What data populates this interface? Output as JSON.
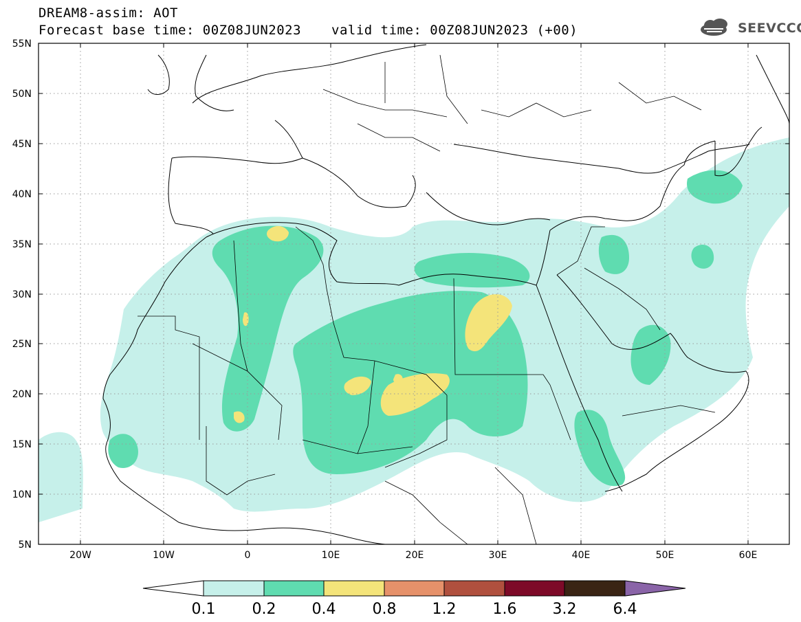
{
  "header": {
    "title": "DREAM8-assim: AOT",
    "base_time": "Forecast base time: 00Z08JUN2023",
    "valid_time": "valid time: 00Z08JUN2023 (+00)"
  },
  "logo": {
    "text": "SEEVCCC",
    "icon": "cloud-icon"
  },
  "map": {
    "lat_labels": [
      "55N",
      "50N",
      "45N",
      "40N",
      "35N",
      "30N",
      "25N",
      "20N",
      "15N",
      "10N",
      "5N"
    ],
    "lon_labels": [
      "20W",
      "10W",
      "0",
      "10E",
      "20E",
      "30E",
      "40E",
      "50E",
      "60E"
    ]
  },
  "colorbar": {
    "labels": [
      "0.1",
      "0.2",
      "0.4",
      "0.8",
      "1.2",
      "1.6",
      "3.2",
      "6.4"
    ],
    "colors": [
      "#ffffff",
      "#c6f0ea",
      "#5fdcb0",
      "#f4e47a",
      "#e6916a",
      "#b0503e",
      "#7d0a28",
      "#3a2414",
      "#8a64a8"
    ]
  },
  "colors": {
    "frame": "#000000",
    "grid": "#9a9a9a",
    "border": "#000000"
  }
}
